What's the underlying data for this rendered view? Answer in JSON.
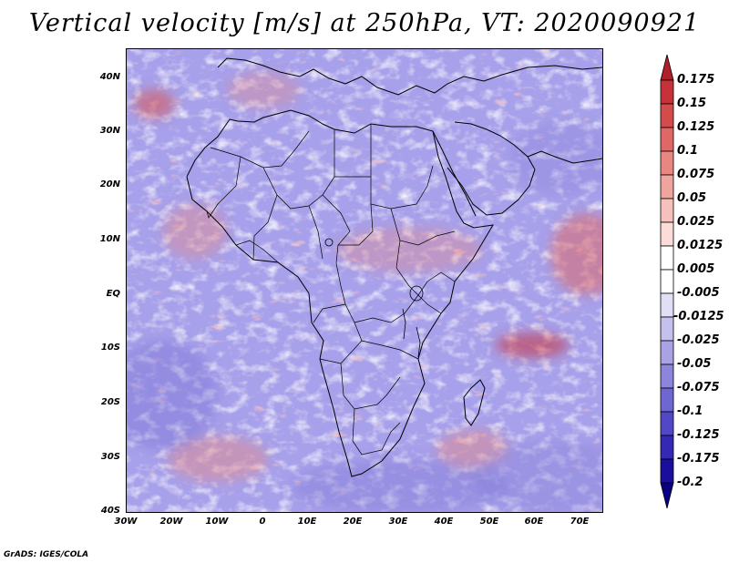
{
  "title": "Vertical velocity [m/s] at 250hPa, VT: 2020090921",
  "map": {
    "lon_range": [
      -30,
      75
    ],
    "lat_range": [
      -40,
      45
    ],
    "lat_ticks": [
      {
        "value": 40,
        "label": "40N"
      },
      {
        "value": 30,
        "label": "30N"
      },
      {
        "value": 20,
        "label": "20N"
      },
      {
        "value": 10,
        "label": "10N"
      },
      {
        "value": 0,
        "label": "EQ"
      },
      {
        "value": -10,
        "label": "10S"
      },
      {
        "value": -20,
        "label": "20S"
      },
      {
        "value": -30,
        "label": "30S"
      },
      {
        "value": -40,
        "label": "40S"
      }
    ],
    "lon_ticks": [
      {
        "value": -30,
        "label": "30W"
      },
      {
        "value": -20,
        "label": "20W"
      },
      {
        "value": -10,
        "label": "10W"
      },
      {
        "value": 0,
        "label": "0"
      },
      {
        "value": 10,
        "label": "10E"
      },
      {
        "value": 20,
        "label": "20E"
      },
      {
        "value": 30,
        "label": "30E"
      },
      {
        "value": 40,
        "label": "40E"
      },
      {
        "value": 50,
        "label": "50E"
      },
      {
        "value": 60,
        "label": "60E"
      },
      {
        "value": 70,
        "label": "70E"
      }
    ],
    "background_color": "#a7a0ea",
    "coastline_color": "#000000"
  },
  "colorbar": {
    "levels": [
      "0.175",
      "0.15",
      "0.125",
      "0.1",
      "0.075",
      "0.05",
      "0.025",
      "0.0125",
      "0.005",
      "-0.005",
      "-0.0125",
      "-0.025",
      "-0.05",
      "-0.075",
      "-0.1",
      "-0.125",
      "-0.175",
      "-0.2"
    ],
    "colors": [
      "#b01f2a",
      "#c7323a",
      "#d44b4c",
      "#df6867",
      "#e88782",
      "#f0a49e",
      "#f6c1bc",
      "#fbdcd9",
      "#ffffff",
      "#ffffff",
      "#e1dff6",
      "#c5c1ee",
      "#a9a3e6",
      "#8c85dc",
      "#6f66d2",
      "#5247c5",
      "#3428b5",
      "#1c0e9c",
      "#0a0082"
    ]
  },
  "credit": "GrADS: IGES/COLA"
}
